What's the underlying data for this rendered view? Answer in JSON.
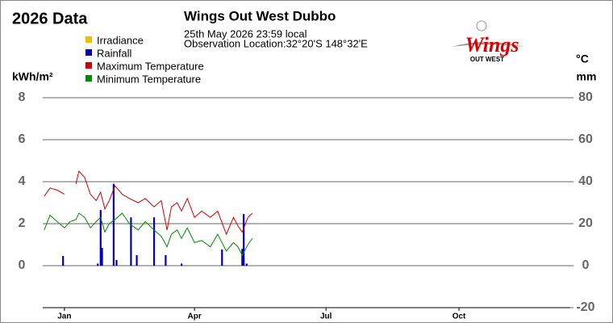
{
  "chart_data": {
    "type": "line",
    "title": "Wings Out West Dubbo",
    "heading": "2026 Data",
    "subtitle": [
      "25th May 2026  23:59 local",
      "Observation Location:32°20'S 148°32'E"
    ],
    "logo": {
      "main": "Wings",
      "sub": "OUT WEST"
    },
    "ylabel": "kWh/m²",
    "y2label": [
      "°C",
      "mm"
    ],
    "xlim": [
      0,
      365
    ],
    "xticks": [
      {
        "value": 15,
        "label": "Jan"
      },
      {
        "value": 105,
        "label": "Apr"
      },
      {
        "value": 196,
        "label": "Jul"
      },
      {
        "value": 288,
        "label": "Oct"
      }
    ],
    "ylim": [
      -2,
      8
    ],
    "yticks": [
      0,
      2,
      4,
      6,
      8
    ],
    "y2lim": [
      -20,
      80
    ],
    "y2ticks": [
      -20,
      0,
      20,
      40,
      60,
      80
    ],
    "grid": true,
    "x": [
      1,
      5,
      10,
      15,
      19,
      23,
      25,
      29,
      33,
      37,
      40,
      43,
      46,
      50,
      55,
      60,
      66,
      71,
      77,
      82,
      86,
      89,
      93,
      96,
      100,
      105,
      110,
      116,
      121,
      127,
      132,
      135,
      138,
      142,
      145
    ],
    "series": [
      {
        "name": "Irradiance",
        "color": "#f0c000"
      },
      {
        "name": "Rainfall",
        "color": "#0000b0",
        "kind": "bar",
        "axis": "y2",
        "x": [
          14,
          38,
          40,
          41,
          49,
          51,
          61,
          65,
          77,
          85,
          96,
          124,
          138,
          139,
          141
        ],
        "values": [
          4.6,
          1,
          26.5,
          8.5,
          39,
          2.7,
          23,
          5,
          23,
          5,
          1,
          7.7,
          8,
          24.6,
          1
        ]
      },
      {
        "name": "Maximum Temperature",
        "color": "#d00000",
        "axis": "y2",
        "values": [
          33,
          37,
          36,
          34,
          null,
          39,
          45,
          42,
          34,
          31,
          35,
          27,
          31,
          38,
          34,
          32,
          30,
          32,
          28,
          31,
          17,
          28,
          30,
          26,
          32,
          23,
          26,
          23,
          26,
          15,
          23,
          19,
          16,
          23,
          25
        ]
      },
      {
        "name": "Minimum Temperature",
        "color": "#008a00",
        "axis": "y2",
        "values": [
          17,
          24,
          21,
          18,
          21,
          22,
          25,
          23,
          18,
          21,
          23,
          16,
          20,
          22,
          25,
          20,
          17,
          21,
          17,
          14,
          9,
          15,
          17,
          13,
          18,
          11,
          12,
          9,
          15,
          7,
          11,
          9,
          5,
          10,
          13
        ]
      }
    ]
  }
}
